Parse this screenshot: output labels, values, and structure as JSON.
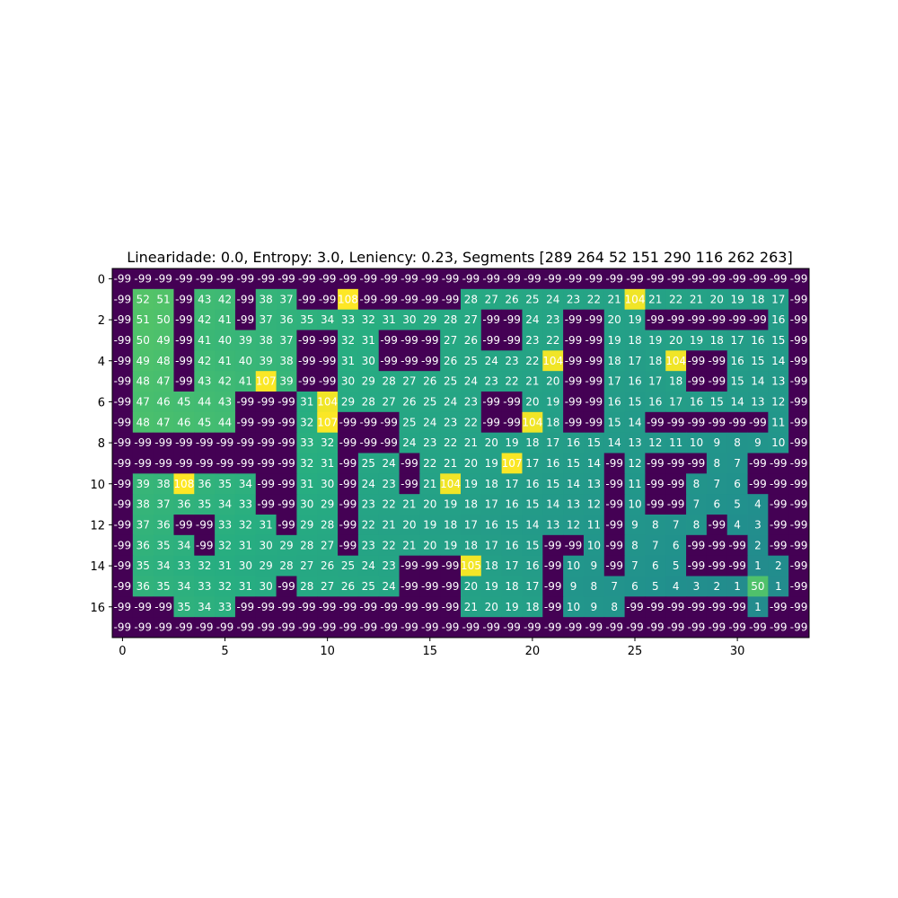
{
  "chart_data": {
    "type": "heatmap",
    "title": "Linearidade: 0.0, Entropy: 3.0, Leniency: 0.23, Segments [289 264  52 151 290 116 262 263]",
    "xlabel": "",
    "ylabel": "",
    "x_ticks": [
      0,
      5,
      10,
      15,
      20,
      25,
      30
    ],
    "y_ticks": [
      0,
      2,
      4,
      6,
      8,
      10,
      12,
      14,
      16
    ],
    "colormap": "viridis",
    "color_range": [
      -99,
      108
    ],
    "n_rows": 18,
    "n_cols": 34,
    "grid": false,
    "values": [
      [
        -99,
        -99,
        -99,
        -99,
        -99,
        -99,
        -99,
        -99,
        -99,
        -99,
        -99,
        -99,
        -99,
        -99,
        -99,
        -99,
        -99,
        -99,
        -99,
        -99,
        -99,
        -99,
        -99,
        -99,
        -99,
        -99,
        -99,
        -99,
        -99,
        -99,
        -99,
        -99,
        -99,
        -99
      ],
      [
        -99,
        52,
        51,
        -99,
        43,
        42,
        -99,
        38,
        37,
        -99,
        -99,
        108,
        -99,
        -99,
        -99,
        -99,
        -99,
        28,
        27,
        26,
        25,
        24,
        23,
        22,
        21,
        104,
        21,
        22,
        21,
        20,
        19,
        18,
        17,
        -99
      ],
      [
        -99,
        51,
        50,
        -99,
        42,
        41,
        -99,
        37,
        36,
        35,
        34,
        33,
        32,
        31,
        30,
        29,
        28,
        27,
        -99,
        -99,
        24,
        23,
        -99,
        -99,
        20,
        19,
        -99,
        -99,
        -99,
        -99,
        -99,
        -99,
        16,
        -99
      ],
      [
        -99,
        50,
        49,
        -99,
        41,
        40,
        39,
        38,
        37,
        -99,
        -99,
        32,
        31,
        -99,
        -99,
        -99,
        27,
        26,
        -99,
        -99,
        23,
        22,
        -99,
        -99,
        19,
        18,
        19,
        20,
        19,
        18,
        17,
        16,
        15,
        -99
      ],
      [
        -99,
        49,
        48,
        -99,
        42,
        41,
        40,
        39,
        38,
        -99,
        -99,
        31,
        30,
        -99,
        -99,
        -99,
        26,
        25,
        24,
        23,
        22,
        104,
        -99,
        -99,
        18,
        17,
        18,
        104,
        -99,
        -99,
        16,
        15,
        14,
        -99
      ],
      [
        -99,
        48,
        47,
        -99,
        43,
        42,
        41,
        107,
        39,
        -99,
        -99,
        30,
        29,
        28,
        27,
        26,
        25,
        24,
        23,
        22,
        21,
        20,
        -99,
        -99,
        17,
        16,
        17,
        18,
        -99,
        -99,
        15,
        14,
        13,
        -99
      ],
      [
        -99,
        47,
        46,
        45,
        44,
        43,
        -99,
        -99,
        -99,
        31,
        104,
        29,
        28,
        27,
        26,
        25,
        24,
        23,
        -99,
        -99,
        20,
        19,
        -99,
        -99,
        16,
        15,
        16,
        17,
        16,
        15,
        14,
        13,
        12,
        -99
      ],
      [
        -99,
        48,
        47,
        46,
        45,
        44,
        -99,
        -99,
        -99,
        32,
        107,
        -99,
        -99,
        -99,
        25,
        24,
        23,
        22,
        -99,
        -99,
        104,
        18,
        -99,
        -99,
        15,
        14,
        -99,
        -99,
        -99,
        -99,
        -99,
        -99,
        11,
        -99
      ],
      [
        -99,
        -99,
        -99,
        -99,
        -99,
        -99,
        -99,
        -99,
        -99,
        33,
        32,
        -99,
        -99,
        -99,
        24,
        23,
        22,
        21,
        20,
        19,
        18,
        17,
        16,
        15,
        14,
        13,
        12,
        11,
        10,
        9,
        8,
        9,
        10,
        -99
      ],
      [
        -99,
        -99,
        -99,
        -99,
        -99,
        -99,
        -99,
        -99,
        -99,
        32,
        31,
        -99,
        25,
        24,
        -99,
        22,
        21,
        20,
        19,
        107,
        17,
        16,
        15,
        14,
        -99,
        12,
        -99,
        -99,
        -99,
        8,
        7,
        -99,
        -99,
        -99
      ],
      [
        -99,
        39,
        38,
        108,
        36,
        35,
        34,
        -99,
        -99,
        31,
        30,
        -99,
        24,
        23,
        -99,
        21,
        104,
        19,
        18,
        17,
        16,
        15,
        14,
        13,
        -99,
        11,
        -99,
        -99,
        8,
        7,
        6,
        -99,
        -99,
        -99
      ],
      [
        -99,
        38,
        37,
        36,
        35,
        34,
        33,
        -99,
        -99,
        30,
        29,
        -99,
        23,
        22,
        21,
        20,
        19,
        18,
        17,
        16,
        15,
        14,
        13,
        12,
        -99,
        10,
        -99,
        -99,
        7,
        6,
        5,
        4,
        -99,
        -99
      ],
      [
        -99,
        37,
        36,
        -99,
        -99,
        33,
        32,
        31,
        -99,
        29,
        28,
        -99,
        22,
        21,
        20,
        19,
        18,
        17,
        16,
        15,
        14,
        13,
        12,
        11,
        -99,
        9,
        8,
        7,
        8,
        -99,
        4,
        3,
        -99,
        -99
      ],
      [
        -99,
        36,
        35,
        34,
        -99,
        32,
        31,
        30,
        29,
        28,
        27,
        -99,
        23,
        22,
        21,
        20,
        19,
        18,
        17,
        16,
        15,
        -99,
        -99,
        10,
        -99,
        8,
        7,
        6,
        -99,
        -99,
        -99,
        2,
        -99,
        -99
      ],
      [
        -99,
        35,
        34,
        33,
        32,
        31,
        30,
        29,
        28,
        27,
        26,
        25,
        24,
        23,
        -99,
        -99,
        -99,
        105,
        18,
        17,
        16,
        -99,
        10,
        9,
        -99,
        7,
        6,
        5,
        -99,
        -99,
        -99,
        1,
        2,
        -99
      ],
      [
        -99,
        36,
        35,
        34,
        33,
        32,
        31,
        30,
        -99,
        28,
        27,
        26,
        25,
        24,
        -99,
        -99,
        -99,
        20,
        19,
        18,
        17,
        -99,
        9,
        8,
        7,
        6,
        5,
        4,
        3,
        2,
        1,
        50,
        1,
        -99
      ],
      [
        -99,
        -99,
        -99,
        35,
        34,
        33,
        -99,
        -99,
        -99,
        -99,
        -99,
        -99,
        -99,
        -99,
        -99,
        -99,
        -99,
        21,
        20,
        19,
        18,
        -99,
        10,
        9,
        8,
        -99,
        -99,
        -99,
        -99,
        -99,
        -99,
        1,
        -99,
        -99
      ],
      [
        -99,
        -99,
        -99,
        -99,
        -99,
        -99,
        -99,
        -99,
        -99,
        -99,
        -99,
        -99,
        -99,
        -99,
        -99,
        -99,
        -99,
        -99,
        -99,
        -99,
        -99,
        -99,
        -99,
        -99,
        -99,
        -99,
        -99,
        -99,
        -99,
        -99,
        -99,
        -99,
        -99,
        -99
      ]
    ]
  }
}
